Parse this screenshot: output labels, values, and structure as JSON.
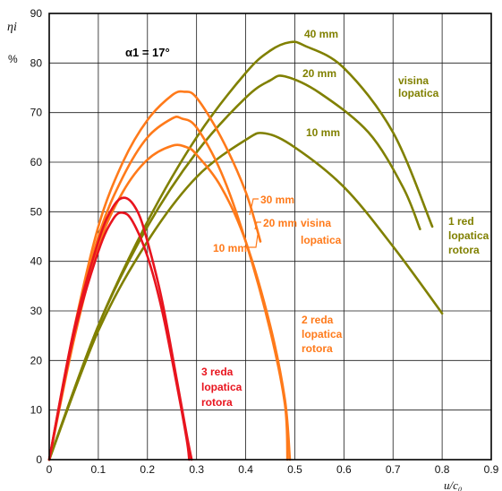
{
  "chart_data": {
    "type": "line",
    "xlim": [
      0,
      0.9
    ],
    "ylim": [
      0,
      90
    ],
    "xticks": [
      "0",
      "0.1",
      "0.2",
      "0.3",
      "0.4",
      "0.5",
      "0.6",
      "0.7",
      "0.8",
      "0.9"
    ],
    "yticks": [
      "0",
      "10",
      "20",
      "30",
      "40",
      "50",
      "60",
      "70",
      "80",
      "90"
    ],
    "grid": true,
    "ylabel": "ηi",
    "yunit": "%",
    "xlabel": "u/c₀",
    "note": "α1 = 17°",
    "colors": {
      "one_row": "#808000",
      "two_rows": "#ff7a1a",
      "three_rows": "#e8141e"
    },
    "group_labels": {
      "one_row": [
        "1 red",
        "lopatica",
        "rotora"
      ],
      "two_rows": [
        "2 reda",
        "lopatica",
        "rotora"
      ],
      "three_rows": [
        "3 reda",
        "lopatica",
        "rotora"
      ],
      "visina_olive": [
        "visina",
        "lopatica"
      ],
      "visina_orange": [
        "visina",
        "lopatica"
      ]
    },
    "series": [
      {
        "group": "one_row",
        "name": "40 mm",
        "x": [
          0,
          0.1,
          0.2,
          0.3,
          0.4,
          0.45,
          0.49,
          0.52,
          0.6,
          0.7,
          0.78
        ],
        "y": [
          0,
          27,
          48,
          65,
          78,
          82.5,
          84.2,
          83.5,
          79,
          66,
          47
        ]
      },
      {
        "group": "one_row",
        "name": "20 mm",
        "x": [
          0,
          0.1,
          0.2,
          0.3,
          0.4,
          0.45,
          0.48,
          0.55,
          0.65,
          0.72,
          0.755
        ],
        "y": [
          0,
          27,
          47,
          62,
          73,
          76.5,
          77.3,
          74,
          66,
          55,
          46.5
        ]
      },
      {
        "group": "one_row",
        "name": "10 mm",
        "x": [
          0,
          0.1,
          0.2,
          0.3,
          0.4,
          0.44,
          0.5,
          0.6,
          0.7,
          0.8
        ],
        "y": [
          0,
          26,
          44,
          57,
          64.5,
          65.8,
          63,
          55,
          43,
          29.5
        ]
      },
      {
        "group": "two_rows",
        "name": "30 mm",
        "x": [
          0,
          0.05,
          0.1,
          0.15,
          0.2,
          0.25,
          0.275,
          0.3,
          0.35,
          0.4,
          0.43
        ],
        "y": [
          0,
          26,
          47,
          60,
          68.5,
          73.5,
          74.2,
          73,
          65,
          54,
          44
        ]
      },
      {
        "group": "two_rows",
        "name": "20 mm",
        "x": [
          0,
          0.05,
          0.1,
          0.15,
          0.2,
          0.25,
          0.27,
          0.3,
          0.35,
          0.4,
          0.45,
          0.48,
          0.485
        ],
        "y": [
          0,
          25,
          45,
          57,
          65,
          68.8,
          68.8,
          67,
          58,
          44,
          26,
          11,
          0
        ]
      },
      {
        "group": "two_rows",
        "name": "10 mm",
        "x": [
          0,
          0.05,
          0.1,
          0.15,
          0.2,
          0.25,
          0.28,
          0.3,
          0.35,
          0.4,
          0.45,
          0.48,
          0.49
        ],
        "y": [
          0,
          24,
          43,
          54,
          60.5,
          63.3,
          63,
          61.5,
          55,
          44,
          27,
          12,
          0
        ]
      },
      {
        "group": "three_rows",
        "name": "",
        "x": [
          0,
          0.05,
          0.1,
          0.13,
          0.155,
          0.18,
          0.2,
          0.23,
          0.26,
          0.28,
          0.29
        ],
        "y": [
          0,
          26,
          44,
          51,
          52.8,
          50,
          44,
          32,
          16,
          5,
          0
        ]
      },
      {
        "group": "three_rows",
        "name": "",
        "x": [
          0,
          0.05,
          0.1,
          0.13,
          0.15,
          0.17,
          0.2,
          0.23,
          0.26,
          0.28,
          0.285
        ],
        "y": [
          0,
          25,
          42,
          48.5,
          49.8,
          48,
          41,
          30,
          15,
          4,
          0
        ]
      }
    ]
  }
}
